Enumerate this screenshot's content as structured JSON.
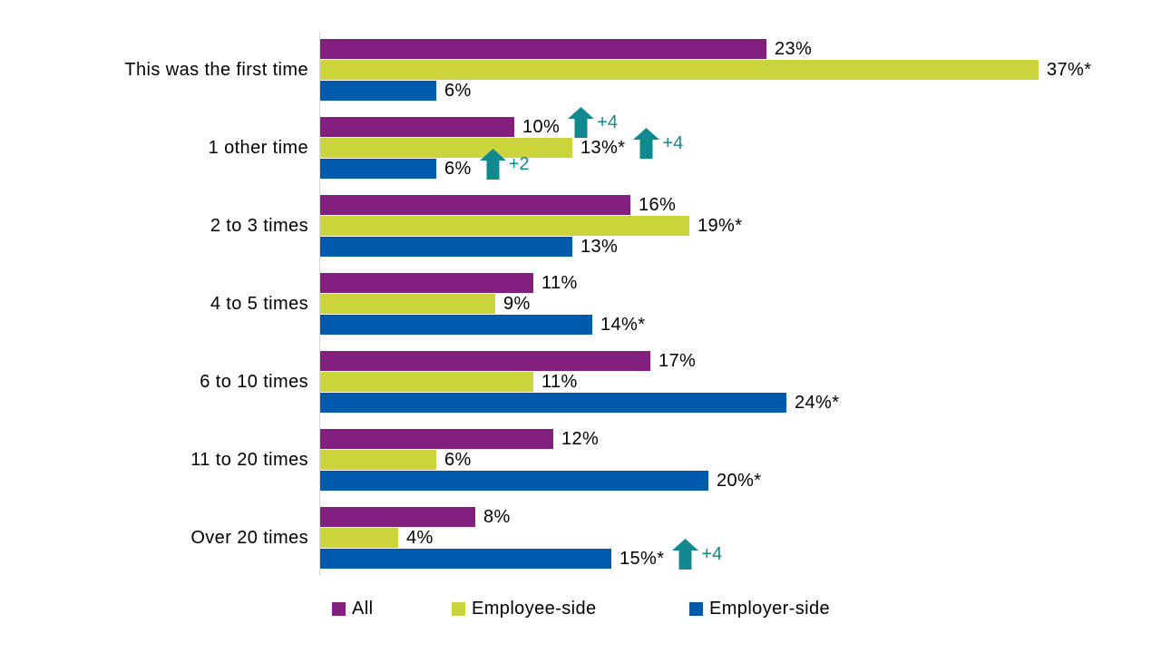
{
  "chart_data": {
    "type": "bar",
    "orientation": "horizontal",
    "title": "",
    "xlabel": "",
    "ylabel": "",
    "xlim": [
      0,
      38
    ],
    "grid": false,
    "legend_position": "bottom",
    "categories": [
      "This was the first time",
      "1 other time",
      "2 to 3 times",
      "4 to 5 times",
      "6 to 10 times",
      "11 to 20 times",
      "Over 20 times"
    ],
    "series": [
      {
        "name": "All",
        "color": "#83207F",
        "values": [
          23,
          10,
          16,
          11,
          17,
          12,
          8
        ],
        "labels": [
          "23%",
          "10%",
          "16%",
          "11%",
          "17%",
          "12%",
          "8%"
        ],
        "deltas": [
          null,
          "+4",
          null,
          null,
          null,
          null,
          null
        ]
      },
      {
        "name": "Employee-side",
        "color": "#CBD53B",
        "values": [
          37,
          13,
          19,
          9,
          11,
          6,
          4
        ],
        "labels": [
          "37%*",
          "13%*",
          "19%*",
          "9%",
          "11%",
          "6%",
          "4%"
        ],
        "deltas": [
          null,
          "+4",
          null,
          null,
          null,
          null,
          null
        ]
      },
      {
        "name": "Employer-side",
        "color": "#005AAB",
        "values": [
          6,
          6,
          13,
          14,
          24,
          20,
          15
        ],
        "labels": [
          "6%",
          "6%",
          "13%",
          "14%*",
          "24%*",
          "20%*",
          "15%*"
        ],
        "deltas": [
          null,
          "+2",
          null,
          null,
          null,
          null,
          "+4"
        ]
      }
    ],
    "annotation": {
      "icon": "up-arrow",
      "color": "#12888F"
    }
  },
  "legend": {
    "items": [
      {
        "label": "All",
        "color": "#83207F"
      },
      {
        "label": "Employee-side",
        "color": "#CBD53B"
      },
      {
        "label": "Employer-side",
        "color": "#005AAB"
      }
    ]
  }
}
